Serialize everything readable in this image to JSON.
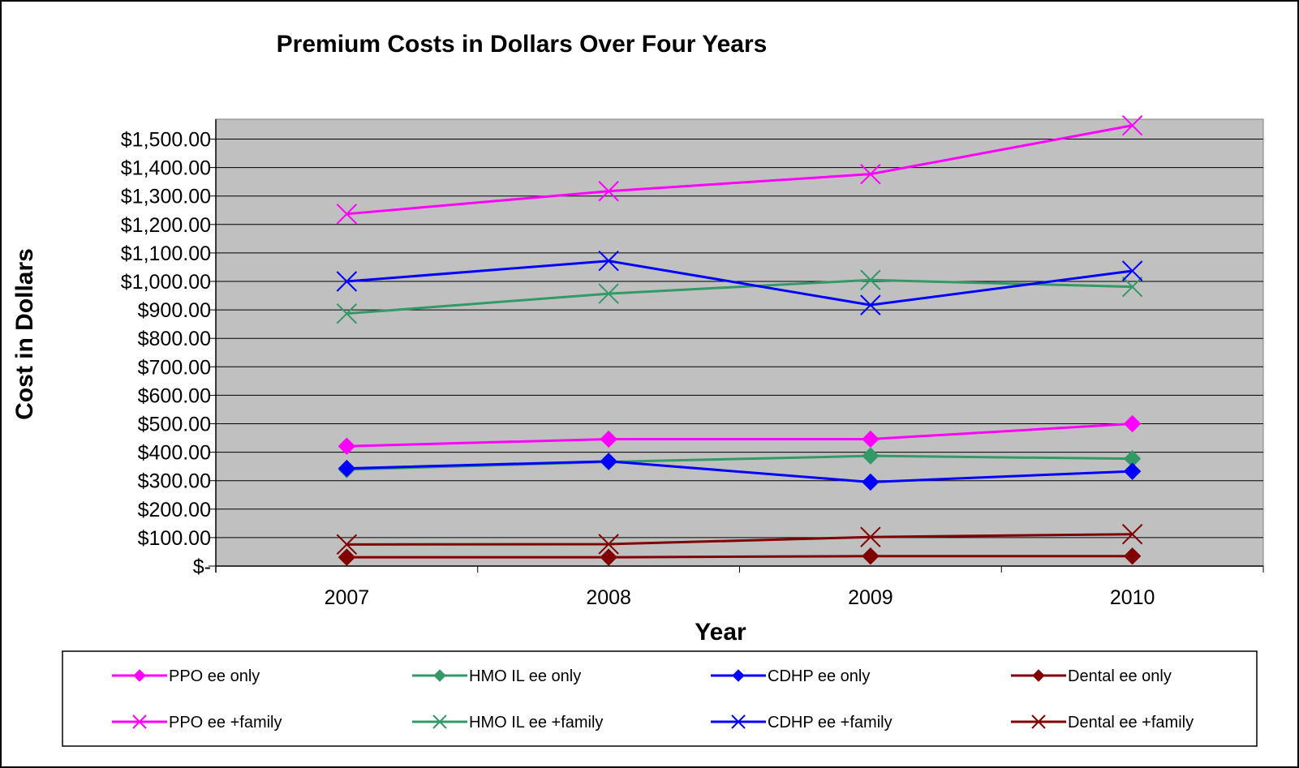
{
  "chart_data": {
    "type": "line",
    "title": "Premium Costs in Dollars Over Four Years",
    "xlabel": "Year",
    "ylabel": "Cost in Dollars",
    "categories": [
      "2007",
      "2008",
      "2009",
      "2010"
    ],
    "ylim": [
      0,
      1500
    ],
    "y_ticks": [
      0,
      100,
      200,
      300,
      400,
      500,
      600,
      700,
      800,
      900,
      1000,
      1100,
      1200,
      1300,
      1400,
      1500
    ],
    "y_tick_labels": [
      "$-",
      "$100.00",
      "$200.00",
      "$300.00",
      "$400.00",
      "$500.00",
      "$600.00",
      "$700.00",
      "$800.00",
      "$900.00",
      "$1,000.00",
      "$1,100.00",
      "$1,200.00",
      "$1,300.00",
      "$1,400.00",
      "$1,500.00"
    ],
    "grid": true,
    "plot_background": "#c0c0c0",
    "legend_position": "bottom",
    "series": [
      {
        "name": "PPO ee only",
        "color": "#ff00ff",
        "marker": "diamond",
        "values": [
          421,
          446,
          446,
          500
        ]
      },
      {
        "name": "HMO IL ee only",
        "color": "#339966",
        "marker": "diamond",
        "values": [
          339,
          366,
          387,
          377
        ]
      },
      {
        "name": "CDHP ee only",
        "color": "#0000ff",
        "marker": "diamond",
        "values": [
          343,
          368,
          295,
          333
        ]
      },
      {
        "name": "Dental ee only",
        "color": "#800000",
        "marker": "diamond",
        "values": [
          31,
          31,
          35,
          35
        ]
      },
      {
        "name": "PPO ee +family",
        "color": "#ff00ff",
        "marker": "x",
        "values": [
          1237,
          1317,
          1377,
          1548
        ]
      },
      {
        "name": "HMO IL ee +family",
        "color": "#339966",
        "marker": "x",
        "values": [
          887,
          957,
          1005,
          981
        ]
      },
      {
        "name": "CDHP ee +family",
        "color": "#0000ff",
        "marker": "x",
        "values": [
          1000,
          1072,
          917,
          1037
        ]
      },
      {
        "name": "Dental ee +family",
        "color": "#800000",
        "marker": "x",
        "values": [
          76,
          77,
          102,
          112
        ]
      }
    ]
  }
}
